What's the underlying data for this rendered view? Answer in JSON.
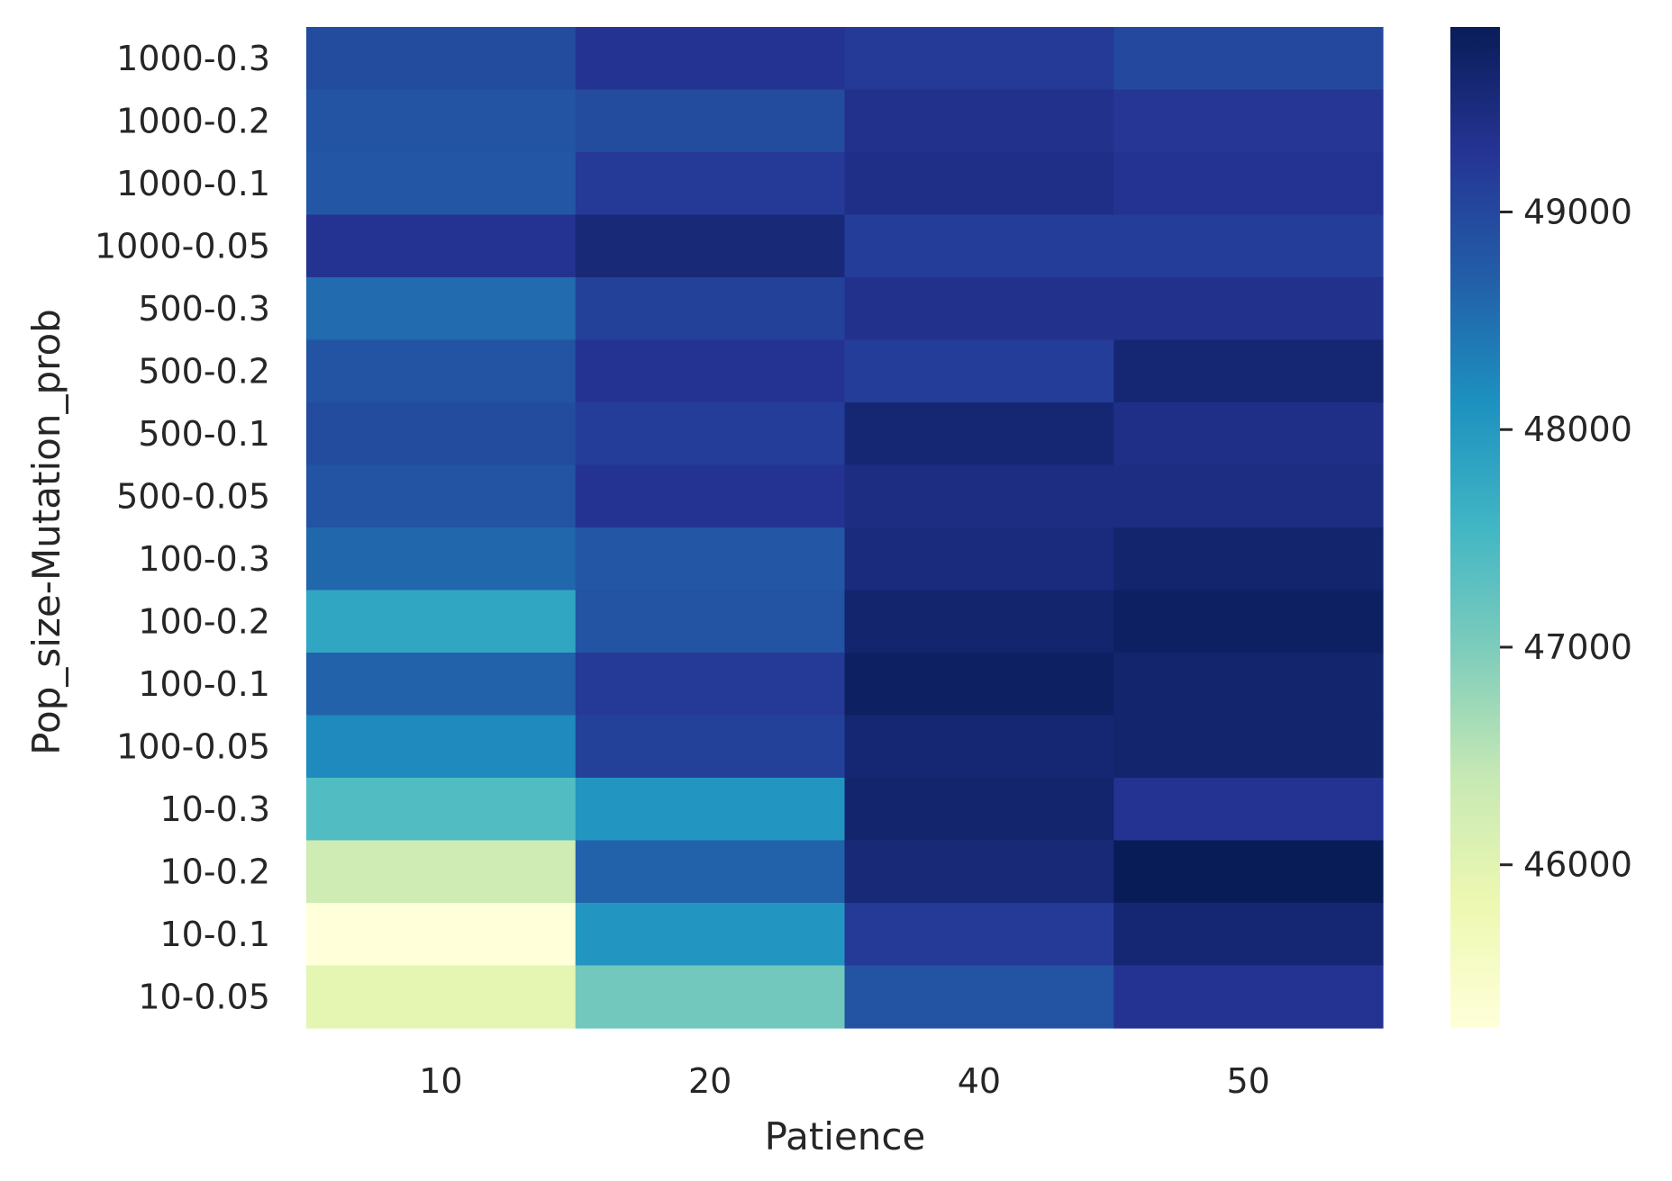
{
  "chart_data": {
    "type": "heatmap",
    "xlabel": "Patience",
    "ylabel": "Pop_size-Mutation_prob",
    "x": [
      "10",
      "20",
      "40",
      "50"
    ],
    "y": [
      "1000-0.3",
      "1000-0.2",
      "1000-0.1",
      "1000-0.05",
      "500-0.3",
      "500-0.2",
      "500-0.1",
      "500-0.05",
      "100-0.3",
      "100-0.2",
      "100-0.1",
      "100-0.05",
      "10-0.3",
      "10-0.2",
      "10-0.1",
      "10-0.05"
    ],
    "values": [
      [
        48950,
        49300,
        49200,
        49000
      ],
      [
        48850,
        48950,
        49350,
        49250
      ],
      [
        48800,
        49200,
        49400,
        49300
      ],
      [
        49300,
        49550,
        49150,
        49150
      ],
      [
        48550,
        49100,
        49350,
        49350
      ],
      [
        48850,
        49300,
        49150,
        49600
      ],
      [
        48950,
        49150,
        49600,
        49400
      ],
      [
        48850,
        49300,
        49450,
        49450
      ],
      [
        48600,
        48800,
        49500,
        49650
      ],
      [
        47800,
        48850,
        49650,
        49750
      ],
      [
        48650,
        49200,
        49750,
        49650
      ],
      [
        48200,
        49100,
        49600,
        49650
      ],
      [
        47400,
        48050,
        49650,
        49300
      ],
      [
        46300,
        48650,
        49550,
        49850
      ],
      [
        45250,
        48050,
        49200,
        49600
      ],
      [
        45950,
        47100,
        48850,
        49300
      ]
    ],
    "colorbar": {
      "ticks": [
        46000,
        47000,
        48000,
        49000
      ],
      "range": [
        45250,
        49850
      ],
      "colormap": "YlGnBu"
    },
    "grid": false,
    "legend": "colorbar-right"
  }
}
